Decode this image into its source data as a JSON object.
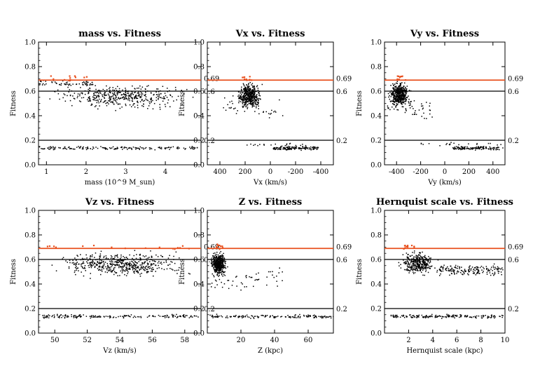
{
  "chart_data": [
    {
      "type": "scatter",
      "title": "mass vs. Fitness",
      "xlabel": "mass (10^9 M_sun)",
      "ylabel": "Fitness",
      "xlim": [
        0.8,
        4.9
      ],
      "ylim": [
        0.0,
        1.0
      ],
      "xticks": [
        1,
        2,
        3,
        4
      ],
      "xticklabels": [
        "1",
        "2",
        "3",
        "4"
      ],
      "yticks": [
        0.0,
        0.2,
        0.4,
        0.6,
        0.8,
        1.0
      ],
      "yticklabels": [
        "0.0",
        "0.2",
        "0.4",
        "0.6",
        "0.8",
        "1.0"
      ],
      "reference_lines": [
        {
          "y": 0.69,
          "label": "0.69",
          "color": "#e8501e"
        },
        {
          "y": 0.6,
          "label": "0.6",
          "color": "#000000"
        },
        {
          "y": 0.2,
          "label": "0.2",
          "color": "#000000"
        }
      ],
      "clusters": [
        {
          "x": [
            0.8,
            4.9
          ],
          "y": [
            0.44,
            0.68
          ],
          "n": 420
        },
        {
          "x": [
            0.8,
            2.2
          ],
          "y": [
            0.63,
            0.7
          ],
          "n": 60
        },
        {
          "x": [
            0.8,
            4.9
          ],
          "y": [
            0.12,
            0.16
          ],
          "n": 160
        }
      ],
      "highlighted": {
        "x": [
          1.0,
          2.0
        ],
        "y": [
          0.69,
          0.73
        ],
        "n": 12,
        "color": "#e8501e"
      }
    },
    {
      "type": "scatter",
      "title": "Vx vs. Fitness",
      "xlabel": "Vx (km/s)",
      "ylabel": "Fitness",
      "xlim": [
        500,
        -500
      ],
      "ylim": [
        0.0,
        1.0
      ],
      "xticks": [
        400,
        200,
        0,
        -200,
        -400
      ],
      "xticklabels": [
        "400",
        "200",
        "0",
        "-200",
        "-400"
      ],
      "yticks": [
        0.0,
        0.2,
        0.4,
        0.6,
        0.8,
        1.0
      ],
      "yticklabels": [
        "0.0",
        "0.2",
        "0.4",
        "0.6",
        "0.8",
        "1.0"
      ],
      "reference_lines": [
        {
          "y": 0.69,
          "label": "0.69",
          "color": "#e8501e"
        },
        {
          "y": 0.6,
          "label": "0.6",
          "color": "#000000"
        },
        {
          "y": 0.2,
          "label": "0.2",
          "color": "#000000"
        }
      ],
      "clusters": [
        {
          "x": [
            280,
            60
          ],
          "y": [
            0.45,
            0.69
          ],
          "n": 440
        },
        {
          "x": [
            380,
            -100
          ],
          "y": [
            0.33,
            0.6
          ],
          "n": 50
        },
        {
          "x": [
            -20,
            -380
          ],
          "y": [
            0.12,
            0.16
          ],
          "n": 130
        },
        {
          "x": [
            200,
            -350
          ],
          "y": [
            0.15,
            0.19
          ],
          "n": 20
        }
      ],
      "highlighted": {
        "x": [
          240,
          140
        ],
        "y": [
          0.69,
          0.73
        ],
        "n": 10,
        "color": "#e8501e"
      }
    },
    {
      "type": "scatter",
      "title": "Vy vs. Fitness",
      "xlabel": "Vy (km/s)",
      "ylabel": "Fitness",
      "xlim": [
        -500,
        500
      ],
      "ylim": [
        0.0,
        1.0
      ],
      "xticks": [
        -400,
        -200,
        0,
        200,
        400
      ],
      "xticklabels": [
        "-400",
        "-200",
        "0",
        "200",
        "400"
      ],
      "yticks": [
        0.0,
        0.2,
        0.4,
        0.6,
        0.8,
        1.0
      ],
      "yticklabels": [
        "0.0",
        "0.2",
        "0.4",
        "0.6",
        "0.8",
        "1.0"
      ],
      "reference_lines": [
        {
          "y": 0.69,
          "label": "0.69",
          "color": "#e8501e"
        },
        {
          "y": 0.6,
          "label": "0.6",
          "color": "#000000"
        },
        {
          "y": 0.2,
          "label": "0.2",
          "color": "#000000"
        }
      ],
      "clusters": [
        {
          "x": [
            -480,
            -280
          ],
          "y": [
            0.45,
            0.7
          ],
          "n": 440
        },
        {
          "x": [
            -480,
            -100
          ],
          "y": [
            0.33,
            0.6
          ],
          "n": 50
        },
        {
          "x": [
            60,
            480
          ],
          "y": [
            0.12,
            0.16
          ],
          "n": 130
        },
        {
          "x": [
            -200,
            480
          ],
          "y": [
            0.15,
            0.19
          ],
          "n": 20
        }
      ],
      "highlighted": {
        "x": [
          -400,
          -330
        ],
        "y": [
          0.69,
          0.73
        ],
        "n": 10,
        "color": "#e8501e"
      }
    },
    {
      "type": "scatter",
      "title": "Vz vs. Fitness",
      "xlabel": "Vz (km/s)",
      "ylabel": "Fitness",
      "xlim": [
        49,
        59
      ],
      "ylim": [
        0.0,
        1.0
      ],
      "xticks": [
        50,
        52,
        54,
        56,
        58
      ],
      "xticklabels": [
        "50",
        "52",
        "54",
        "56",
        "58"
      ],
      "yticks": [
        0.0,
        0.2,
        0.4,
        0.6,
        0.8,
        1.0
      ],
      "yticklabels": [
        "0.0",
        "0.2",
        "0.4",
        "0.6",
        "0.8",
        "1.0"
      ],
      "reference_lines": [
        {
          "y": 0.69,
          "label": "0.69",
          "color": "#e8501e"
        },
        {
          "y": 0.6,
          "label": "0.6",
          "color": "#000000"
        },
        {
          "y": 0.2,
          "label": "0.2",
          "color": "#000000"
        }
      ],
      "clusters": [
        {
          "x": [
            49.2,
            58.8
          ],
          "y": [
            0.44,
            0.69
          ],
          "n": 520
        },
        {
          "x": [
            49.2,
            58.8
          ],
          "y": [
            0.12,
            0.16
          ],
          "n": 170
        }
      ],
      "highlighted": {
        "x": [
          49.3,
          58.8
        ],
        "y": [
          0.69,
          0.72
        ],
        "n": 16,
        "color": "#e8501e"
      }
    },
    {
      "type": "scatter",
      "title": "Z vs. Fitness",
      "xlabel": "Z (kpc)",
      "ylabel": "Fitness",
      "xlim": [
        0,
        75
      ],
      "ylim": [
        0.0,
        1.0
      ],
      "xticks": [
        20,
        40,
        60
      ],
      "xticklabels": [
        "20",
        "40",
        "60"
      ],
      "yticks": [
        0.0,
        0.2,
        0.4,
        0.6,
        0.8,
        1.0
      ],
      "yticklabels": [
        "0.0",
        "0.2",
        "0.4",
        "0.6",
        "0.8",
        "1.0"
      ],
      "reference_lines": [
        {
          "y": 0.69,
          "label": "0.69",
          "color": "#e8501e"
        },
        {
          "y": 0.6,
          "label": "0.6",
          "color": "#000000"
        },
        {
          "y": 0.2,
          "label": "0.2",
          "color": "#000000"
        }
      ],
      "clusters": [
        {
          "x": [
            1,
            12
          ],
          "y": [
            0.45,
            0.69
          ],
          "n": 450
        },
        {
          "x": [
            1,
            45
          ],
          "y": [
            0.33,
            0.58
          ],
          "n": 60
        },
        {
          "x": [
            1,
            75
          ],
          "y": [
            0.12,
            0.16
          ],
          "n": 150
        }
      ],
      "highlighted": {
        "x": [
          4,
          9
        ],
        "y": [
          0.69,
          0.73
        ],
        "n": 9,
        "color": "#e8501e"
      }
    },
    {
      "type": "scatter",
      "title": "Hernquist scale vs. Fitness",
      "xlabel": "Hernquist scale (kpc)",
      "ylabel": "Fitness",
      "xlim": [
        0,
        10
      ],
      "ylim": [
        0.0,
        1.0
      ],
      "xticks": [
        2,
        4,
        6,
        8,
        10
      ],
      "xticklabels": [
        "2",
        "4",
        "6",
        "8",
        "10"
      ],
      "yticks": [
        0.0,
        0.2,
        0.4,
        0.6,
        0.8,
        1.0
      ],
      "yticklabels": [
        "0.0",
        "0.2",
        "0.4",
        "0.6",
        "0.8",
        "1.0"
      ],
      "reference_lines": [
        {
          "y": 0.69,
          "label": "0.69",
          "color": "#e8501e"
        },
        {
          "y": 0.6,
          "label": "0.6",
          "color": "#000000"
        },
        {
          "y": 0.2,
          "label": "0.2",
          "color": "#000000"
        }
      ],
      "clusters": [
        {
          "x": [
            1.0,
            4.5
          ],
          "y": [
            0.45,
            0.69
          ],
          "n": 330
        },
        {
          "x": [
            4.5,
            9.8
          ],
          "y": [
            0.45,
            0.58
          ],
          "n": 170
        },
        {
          "x": [
            0.5,
            9.8
          ],
          "y": [
            0.12,
            0.16
          ],
          "n": 160
        }
      ],
      "highlighted": {
        "x": [
          1.5,
          3.0
        ],
        "y": [
          0.69,
          0.73
        ],
        "n": 10,
        "color": "#e8501e"
      }
    }
  ]
}
